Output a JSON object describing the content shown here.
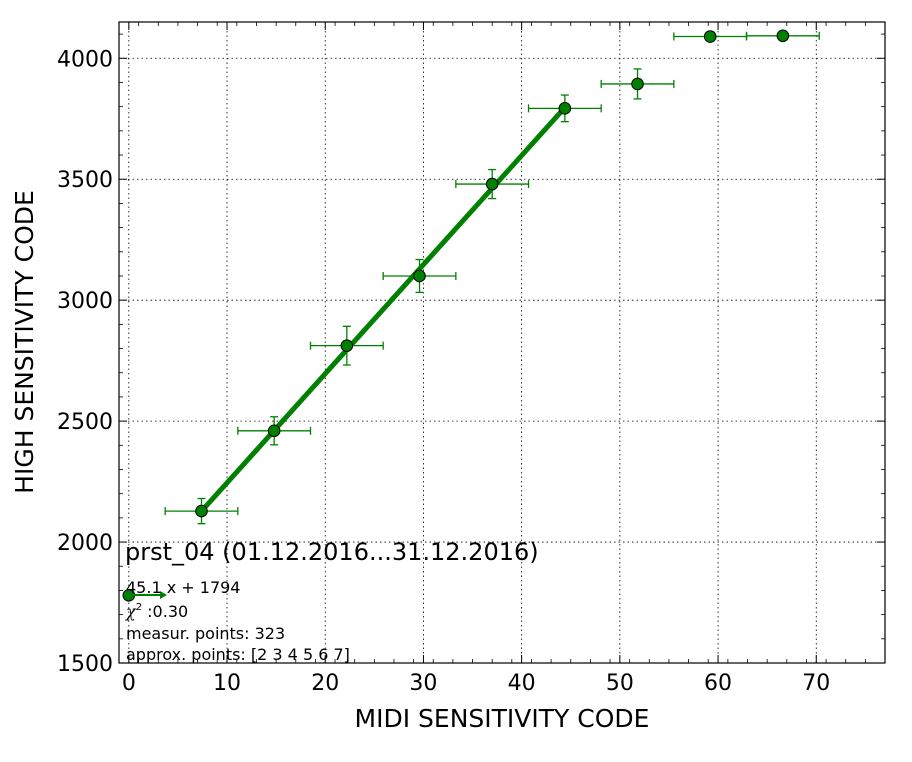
{
  "chart_data": {
    "type": "scatter",
    "xlabel": "MIDI SENSITIVITY CODE",
    "ylabel": "HIGH SENSITIVITY CODE",
    "xlim": [
      -1,
      77
    ],
    "ylim": [
      1500,
      4150
    ],
    "x_ticks": [
      0,
      10,
      20,
      30,
      40,
      50,
      60,
      70
    ],
    "y_ticks": [
      1500,
      2000,
      2500,
      3000,
      3500,
      4000
    ],
    "x_tick_labels": [
      "0",
      "10",
      "20",
      "30",
      "40",
      "50",
      "60",
      "70"
    ],
    "y_tick_labels": [
      "1500",
      "2000",
      "2500",
      "3000",
      "3500",
      "4000"
    ],
    "grid": true,
    "series": [
      {
        "color": "#008000",
        "points": [
          {
            "x": 0.0,
            "y": 1780,
            "xerr": 0,
            "yerr": 0
          },
          {
            "x": 7.4,
            "y": 2128,
            "xerr": 3.7,
            "yerr": 52
          },
          {
            "x": 14.8,
            "y": 2460,
            "xerr": 3.7,
            "yerr": 58
          },
          {
            "x": 22.2,
            "y": 2812,
            "xerr": 3.7,
            "yerr": 80
          },
          {
            "x": 29.6,
            "y": 3100,
            "xerr": 3.7,
            "yerr": 68
          },
          {
            "x": 37.0,
            "y": 3480,
            "xerr": 3.7,
            "yerr": 60
          },
          {
            "x": 44.4,
            "y": 3793,
            "xerr": 3.7,
            "yerr": 55
          },
          {
            "x": 51.8,
            "y": 3894,
            "xerr": 3.7,
            "yerr": 62
          },
          {
            "x": 59.2,
            "y": 4090,
            "xerr": 3.7,
            "yerr": 0
          },
          {
            "x": 66.6,
            "y": 4093,
            "xerr": 3.7,
            "yerr": 0
          }
        ]
      }
    ],
    "fit": {
      "x_from": 7.4,
      "x_to": 44.4,
      "slope": 45.1,
      "intercept": 1794,
      "color": "#008000"
    },
    "legend_placement": "bottom-left",
    "annotations": {
      "title": "prst_04 (01.12.2016...31.12.2016)",
      "equation": "45.1 x + 1794",
      "chi_symbol": "χ",
      "chi_exp": "2",
      "chi_value": " :0.30",
      "measur_points": "measur. points: 323",
      "approx_points": "approx. points: [2 3 4 5 6 7]"
    }
  }
}
